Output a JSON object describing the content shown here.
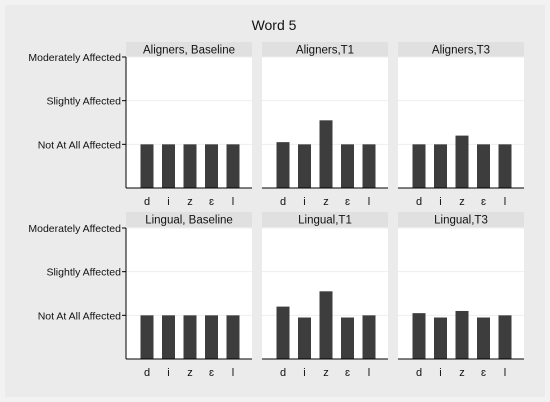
{
  "title": "Word 5",
  "colors": {
    "outer_background": "#ebebeb",
    "panel_background": "#ffffff",
    "strip_background": "#e0e0e0",
    "bar": "#3d3d3d",
    "gridline": "#eeeeee",
    "axis": "#000000"
  },
  "chart_data": {
    "type": "bar",
    "title": "Word 5",
    "categories": [
      "d",
      "i",
      "z",
      "ɛ",
      "l"
    ],
    "y_tick_labels": [
      "Not At All Affected",
      "Slightly Affected",
      "Moderately Affected"
    ],
    "y_tick_values": [
      1,
      2,
      3
    ],
    "ylim": [
      0,
      3
    ],
    "grid": true,
    "panels": [
      {
        "title": "Aligners, Baseline",
        "values": [
          1.0,
          1.0,
          1.0,
          1.0,
          1.0
        ]
      },
      {
        "title": "Aligners,T1",
        "values": [
          1.05,
          1.0,
          1.55,
          1.0,
          1.0
        ]
      },
      {
        "title": "Aligners,T3",
        "values": [
          1.0,
          1.0,
          1.2,
          1.0,
          1.0
        ]
      },
      {
        "title": "Lingual, Baseline",
        "values": [
          1.0,
          1.0,
          1.0,
          1.0,
          1.0
        ]
      },
      {
        "title": "Lingual,T1",
        "values": [
          1.2,
          0.95,
          1.55,
          0.95,
          1.0
        ]
      },
      {
        "title": "Lingual,T3",
        "values": [
          1.05,
          0.95,
          1.1,
          0.95,
          1.0
        ]
      }
    ]
  }
}
